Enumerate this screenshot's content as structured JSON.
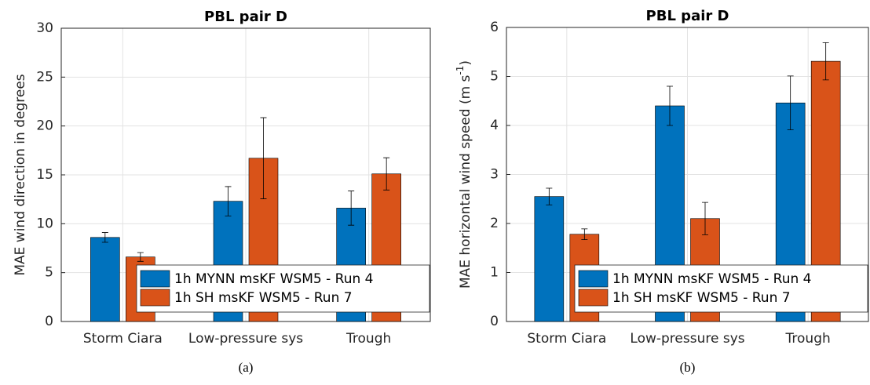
{
  "chart_data": [
    {
      "type": "bar",
      "title": "PBL pair D",
      "ylabel": "MAE wind direction in degrees",
      "caption": "(a)",
      "categories": [
        "Storm Ciara",
        "Low-pressure sys",
        "Trough"
      ],
      "series": [
        {
          "name": "1h MYNN msKF WSM5 - Run 4",
          "color": "#0072bd",
          "values": [
            8.6,
            12.3,
            11.6
          ],
          "errors": [
            0.5,
            1.5,
            1.75
          ]
        },
        {
          "name": "1h SH msKF WSM5 - Run 7",
          "color": "#d95319",
          "values": [
            6.6,
            16.7,
            15.1
          ],
          "errors": [
            0.45,
            4.15,
            1.65
          ]
        }
      ],
      "ylim": [
        0,
        30
      ],
      "yticks": [
        0,
        5,
        10,
        15,
        20,
        25,
        30
      ],
      "grid": true,
      "legend": "lower right"
    },
    {
      "type": "bar",
      "title": "PBL pair D",
      "ylabel": "MAE horizontal wind speed (m s",
      "ylabel_sup": "-1",
      "ylabel_end": ")",
      "caption": "(b)",
      "categories": [
        "Storm Ciara",
        "Low-pressure sys",
        "Trough"
      ],
      "series": [
        {
          "name": "1h MYNN msKF WSM5 - Run 4",
          "color": "#0072bd",
          "values": [
            2.55,
            4.4,
            4.46
          ],
          "errors": [
            0.17,
            0.4,
            0.55
          ]
        },
        {
          "name": "1h SH msKF WSM5 - Run 7",
          "color": "#d95319",
          "values": [
            1.78,
            2.1,
            5.31
          ],
          "errors": [
            0.11,
            0.33,
            0.38
          ]
        }
      ],
      "ylim": [
        0,
        6
      ],
      "yticks": [
        0,
        1,
        2,
        3,
        4,
        5,
        6
      ],
      "grid": true,
      "legend": "lower right"
    }
  ]
}
